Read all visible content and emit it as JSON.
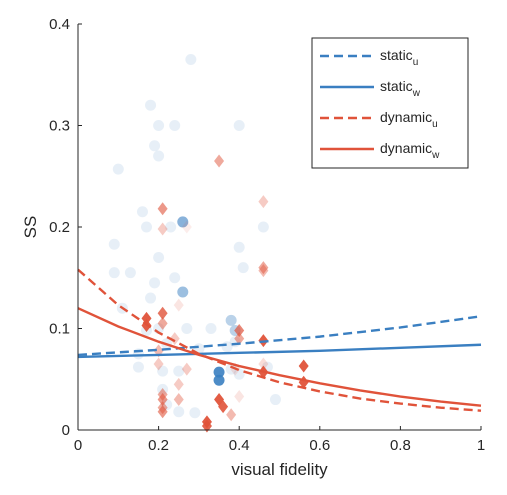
{
  "chart_data": {
    "type": "scatter",
    "xlabel": "visual fidelity",
    "ylabel": "SS",
    "xlim": [
      0,
      1
    ],
    "ylim": [
      0,
      0.4
    ],
    "x_ticks": [
      0,
      0.2,
      0.4,
      0.6,
      0.8,
      1
    ],
    "y_ticks": [
      0,
      0.1,
      0.2,
      0.3,
      0.4
    ],
    "x_tick_labels": [
      "0",
      "0.2",
      "0.4",
      "0.6",
      "0.8",
      "1"
    ],
    "y_tick_labels": [
      "0",
      "0.1",
      "0.2",
      "0.3",
      "0.4"
    ],
    "grid": false,
    "legend_position": "top-right",
    "colors": {
      "static": "#3a7fc1",
      "dynamic": "#e0533a",
      "axis": "#262626"
    },
    "series": [
      {
        "name": "static",
        "subscript": "u",
        "kind": "fit-line",
        "style": "dashed",
        "color": "#3a7fc1",
        "x": [
          0,
          0.2,
          0.4,
          0.6,
          0.8,
          1
        ],
        "y": [
          0.074,
          0.079,
          0.085,
          0.092,
          0.101,
          0.112
        ]
      },
      {
        "name": "static",
        "subscript": "w",
        "kind": "fit-line",
        "style": "solid",
        "color": "#3a7fc1",
        "x": [
          0,
          0.2,
          0.4,
          0.6,
          0.8,
          1
        ],
        "y": [
          0.072,
          0.074,
          0.076,
          0.078,
          0.081,
          0.084
        ]
      },
      {
        "name": "dynamic",
        "subscript": "u",
        "kind": "fit-line",
        "style": "dashed",
        "color": "#e0533a",
        "x": [
          0,
          0.1,
          0.2,
          0.3,
          0.4,
          0.5,
          0.6,
          0.7,
          0.8,
          0.9,
          1
        ],
        "y": [
          0.158,
          0.123,
          0.096,
          0.075,
          0.059,
          0.047,
          0.038,
          0.031,
          0.026,
          0.022,
          0.019
        ]
      },
      {
        "name": "dynamic",
        "subscript": "w",
        "kind": "fit-line",
        "style": "solid",
        "color": "#e0533a",
        "x": [
          0,
          0.1,
          0.2,
          0.3,
          0.4,
          0.5,
          0.6,
          0.7,
          0.8,
          0.9,
          1
        ],
        "y": [
          0.12,
          0.102,
          0.087,
          0.074,
          0.063,
          0.054,
          0.046,
          0.039,
          0.033,
          0.028,
          0.024
        ]
      }
    ],
    "scatter_static": {
      "marker": "circle",
      "color": "#3a7fc1",
      "points": [
        {
          "x": 0.09,
          "y": 0.183,
          "alpha": 0.12
        },
        {
          "x": 0.09,
          "y": 0.155,
          "alpha": 0.12
        },
        {
          "x": 0.1,
          "y": 0.257,
          "alpha": 0.12
        },
        {
          "x": 0.11,
          "y": 0.12,
          "alpha": 0.12
        },
        {
          "x": 0.13,
          "y": 0.155,
          "alpha": 0.12
        },
        {
          "x": 0.15,
          "y": 0.075,
          "alpha": 0.12
        },
        {
          "x": 0.15,
          "y": 0.062,
          "alpha": 0.12
        },
        {
          "x": 0.16,
          "y": 0.215,
          "alpha": 0.12
        },
        {
          "x": 0.17,
          "y": 0.2,
          "alpha": 0.12
        },
        {
          "x": 0.17,
          "y": 0.098,
          "alpha": 0.12
        },
        {
          "x": 0.18,
          "y": 0.32,
          "alpha": 0.12
        },
        {
          "x": 0.18,
          "y": 0.13,
          "alpha": 0.12
        },
        {
          "x": 0.19,
          "y": 0.28,
          "alpha": 0.12
        },
        {
          "x": 0.19,
          "y": 0.145,
          "alpha": 0.12
        },
        {
          "x": 0.2,
          "y": 0.3,
          "alpha": 0.12
        },
        {
          "x": 0.2,
          "y": 0.27,
          "alpha": 0.12
        },
        {
          "x": 0.2,
          "y": 0.17,
          "alpha": 0.12
        },
        {
          "x": 0.2,
          "y": 0.1,
          "alpha": 0.12
        },
        {
          "x": 0.21,
          "y": 0.058,
          "alpha": 0.12
        },
        {
          "x": 0.21,
          "y": 0.04,
          "alpha": 0.12
        },
        {
          "x": 0.22,
          "y": 0.025,
          "alpha": 0.12
        },
        {
          "x": 0.22,
          "y": 0.085,
          "alpha": 0.12
        },
        {
          "x": 0.23,
          "y": 0.2,
          "alpha": 0.12
        },
        {
          "x": 0.24,
          "y": 0.3,
          "alpha": 0.12
        },
        {
          "x": 0.24,
          "y": 0.15,
          "alpha": 0.12
        },
        {
          "x": 0.25,
          "y": 0.058,
          "alpha": 0.12
        },
        {
          "x": 0.25,
          "y": 0.018,
          "alpha": 0.12
        },
        {
          "x": 0.26,
          "y": 0.205,
          "alpha": 0.6
        },
        {
          "x": 0.26,
          "y": 0.136,
          "alpha": 0.5
        },
        {
          "x": 0.27,
          "y": 0.1,
          "alpha": 0.12
        },
        {
          "x": 0.28,
          "y": 0.365,
          "alpha": 0.12
        },
        {
          "x": 0.29,
          "y": 0.017,
          "alpha": 0.12
        },
        {
          "x": 0.3,
          "y": 0.08,
          "alpha": 0.12
        },
        {
          "x": 0.33,
          "y": 0.1,
          "alpha": 0.12
        },
        {
          "x": 0.35,
          "y": 0.057,
          "alpha": 0.9
        },
        {
          "x": 0.35,
          "y": 0.049,
          "alpha": 0.9
        },
        {
          "x": 0.37,
          "y": 0.082,
          "alpha": 0.12
        },
        {
          "x": 0.38,
          "y": 0.06,
          "alpha": 0.12
        },
        {
          "x": 0.38,
          "y": 0.108,
          "alpha": 0.35
        },
        {
          "x": 0.39,
          "y": 0.098,
          "alpha": 0.35
        },
        {
          "x": 0.39,
          "y": 0.087,
          "alpha": 0.12
        },
        {
          "x": 0.4,
          "y": 0.3,
          "alpha": 0.12
        },
        {
          "x": 0.4,
          "y": 0.18,
          "alpha": 0.12
        },
        {
          "x": 0.41,
          "y": 0.16,
          "alpha": 0.12
        },
        {
          "x": 0.4,
          "y": 0.055,
          "alpha": 0.12
        },
        {
          "x": 0.46,
          "y": 0.2,
          "alpha": 0.12
        },
        {
          "x": 0.47,
          "y": 0.062,
          "alpha": 0.12
        },
        {
          "x": 0.49,
          "y": 0.03,
          "alpha": 0.12
        }
      ]
    },
    "scatter_dynamic": {
      "marker": "diamond",
      "color": "#e0533a",
      "points": [
        {
          "x": 0.17,
          "y": 0.11,
          "alpha": 0.95
        },
        {
          "x": 0.17,
          "y": 0.103,
          "alpha": 0.95
        },
        {
          "x": 0.2,
          "y": 0.078,
          "alpha": 0.4
        },
        {
          "x": 0.2,
          "y": 0.065,
          "alpha": 0.3
        },
        {
          "x": 0.21,
          "y": 0.218,
          "alpha": 0.6
        },
        {
          "x": 0.21,
          "y": 0.198,
          "alpha": 0.3
        },
        {
          "x": 0.21,
          "y": 0.115,
          "alpha": 0.8
        },
        {
          "x": 0.21,
          "y": 0.105,
          "alpha": 0.5
        },
        {
          "x": 0.21,
          "y": 0.035,
          "alpha": 0.5
        },
        {
          "x": 0.21,
          "y": 0.03,
          "alpha": 0.6
        },
        {
          "x": 0.21,
          "y": 0.022,
          "alpha": 0.5
        },
        {
          "x": 0.21,
          "y": 0.018,
          "alpha": 0.6
        },
        {
          "x": 0.24,
          "y": 0.09,
          "alpha": 0.3
        },
        {
          "x": 0.25,
          "y": 0.123,
          "alpha": 0.15
        },
        {
          "x": 0.25,
          "y": 0.045,
          "alpha": 0.3
        },
        {
          "x": 0.25,
          "y": 0.03,
          "alpha": 0.4
        },
        {
          "x": 0.27,
          "y": 0.2,
          "alpha": 0.1
        },
        {
          "x": 0.27,
          "y": 0.06,
          "alpha": 0.3
        },
        {
          "x": 0.32,
          "y": 0.008,
          "alpha": 0.95
        },
        {
          "x": 0.32,
          "y": 0.004,
          "alpha": 0.9
        },
        {
          "x": 0.35,
          "y": 0.265,
          "alpha": 0.5
        },
        {
          "x": 0.35,
          "y": 0.03,
          "alpha": 0.95
        },
        {
          "x": 0.36,
          "y": 0.023,
          "alpha": 0.9
        },
        {
          "x": 0.38,
          "y": 0.015,
          "alpha": 0.4
        },
        {
          "x": 0.39,
          "y": 0.06,
          "alpha": 0.15
        },
        {
          "x": 0.4,
          "y": 0.098,
          "alpha": 0.7
        },
        {
          "x": 0.4,
          "y": 0.09,
          "alpha": 0.5
        },
        {
          "x": 0.4,
          "y": 0.033,
          "alpha": 0.15
        },
        {
          "x": 0.46,
          "y": 0.225,
          "alpha": 0.3
        },
        {
          "x": 0.46,
          "y": 0.16,
          "alpha": 0.5
        },
        {
          "x": 0.46,
          "y": 0.157,
          "alpha": 0.4
        },
        {
          "x": 0.46,
          "y": 0.088,
          "alpha": 0.95
        },
        {
          "x": 0.46,
          "y": 0.065,
          "alpha": 0.2
        },
        {
          "x": 0.46,
          "y": 0.057,
          "alpha": 0.95
        },
        {
          "x": 0.56,
          "y": 0.063,
          "alpha": 0.95
        },
        {
          "x": 0.56,
          "y": 0.047,
          "alpha": 0.95
        }
      ]
    }
  }
}
